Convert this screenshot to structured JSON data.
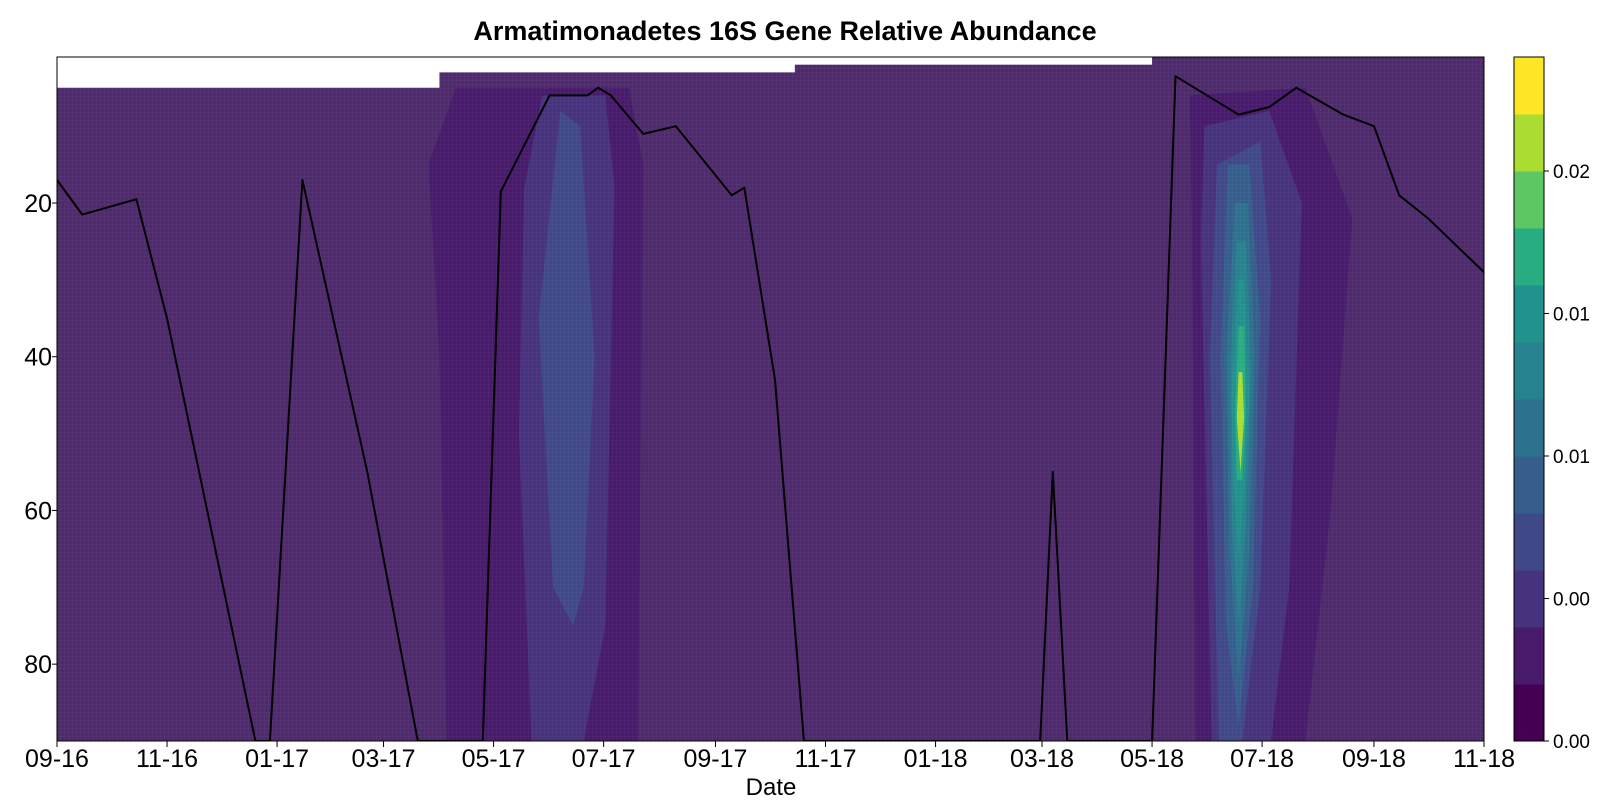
{
  "chart_data": {
    "type": "heatmap",
    "subtype": "filled-contour with line overlay",
    "title": "Armatimonadetes 16S Gene Relative Abundance",
    "xlabel": "Date",
    "ylabel": "",
    "x_axis": "date",
    "xlim": [
      "2016-09-01",
      "2018-11-01"
    ],
    "x_tick_labels": [
      "09-16",
      "11-16",
      "01-17",
      "03-17",
      "05-17",
      "07-17",
      "09-17",
      "11-17",
      "01-18",
      "03-18",
      "05-18",
      "07-18",
      "09-18",
      "11-18"
    ],
    "y_axis_inverted": true,
    "ylim": [
      1,
      90
    ],
    "y_ticks": [
      20,
      40,
      60,
      80
    ],
    "colormap": "viridis",
    "colorbar": {
      "min": 0.0,
      "max": 0.024,
      "levels": 12,
      "tick_labels": [
        "0.00",
        "0.00",
        "0.01",
        "0.01",
        "0.02"
      ],
      "tick_values": [
        0.0,
        0.005,
        0.01,
        0.015,
        0.02
      ],
      "colors": [
        "#440154",
        "#471A6B",
        "#46327E",
        "#3F4889",
        "#355E8D",
        "#2C718E",
        "#26828E",
        "#21918C",
        "#27AD81",
        "#5DC863",
        "#AADC32",
        "#FDE725"
      ]
    },
    "background_level_color": "#4E2A6C",
    "sampling_top_depth": [
      {
        "from": "2016-09-01",
        "to": "2017-04-01",
        "depth": 5
      },
      {
        "from": "2017-04-01",
        "to": "2017-10-15",
        "depth": 3
      },
      {
        "from": "2017-10-15",
        "to": "2018-05-01",
        "depth": 2
      },
      {
        "from": "2018-05-01",
        "to": "2018-11-01",
        "depth": 1
      }
    ],
    "contour_regions": [
      {
        "name": "summer-2017-outer",
        "level": 0.0033,
        "polygon": [
          [
            "2017-04-10",
            5
          ],
          [
            "2017-07-15",
            5
          ],
          [
            "2017-07-23",
            15
          ],
          [
            "2017-07-20",
            90
          ],
          [
            "2017-04-05",
            90
          ],
          [
            "2017-04-01",
            40
          ],
          [
            "2017-03-26",
            15
          ]
        ]
      },
      {
        "name": "summer-2017-mid",
        "level": 0.0045,
        "polygon": [
          [
            "2017-05-28",
            6
          ],
          [
            "2017-07-02",
            6
          ],
          [
            "2017-07-07",
            18
          ],
          [
            "2017-07-02",
            75
          ],
          [
            "2017-06-20",
            90
          ],
          [
            "2017-05-22",
            90
          ],
          [
            "2017-05-15",
            50
          ],
          [
            "2017-05-18",
            18
          ]
        ]
      },
      {
        "name": "summer-2017-core",
        "level": 0.006,
        "polygon": [
          [
            "2017-06-07",
            8
          ],
          [
            "2017-06-18",
            10
          ],
          [
            "2017-06-26",
            40
          ],
          [
            "2017-06-20",
            70
          ],
          [
            "2017-06-14",
            75
          ],
          [
            "2017-06-03",
            70
          ],
          [
            "2017-05-26",
            35
          ]
        ]
      },
      {
        "name": "summer-2018-outer",
        "level": 0.0033,
        "polygon": [
          [
            "2018-05-22",
            6
          ],
          [
            "2018-07-25",
            5
          ],
          [
            "2018-08-20",
            22
          ],
          [
            "2018-08-08",
            60
          ],
          [
            "2018-07-25",
            90
          ],
          [
            "2018-05-25",
            90
          ],
          [
            "2018-05-23",
            20
          ]
        ]
      },
      {
        "name": "summer-2018-l1",
        "level": 0.0045,
        "polygon": [
          [
            "2018-05-30",
            10
          ],
          [
            "2018-07-05",
            8
          ],
          [
            "2018-07-23",
            20
          ],
          [
            "2018-07-16",
            70
          ],
          [
            "2018-07-06",
            90
          ],
          [
            "2018-06-03",
            90
          ],
          [
            "2018-05-28",
            25
          ]
        ]
      },
      {
        "name": "summer-2018-l2",
        "level": 0.006,
        "polygon": [
          [
            "2018-06-06",
            15
          ],
          [
            "2018-06-30",
            12
          ],
          [
            "2018-07-06",
            30
          ],
          [
            "2018-06-30",
            70
          ],
          [
            "2018-06-20",
            90
          ],
          [
            "2018-06-07",
            90
          ],
          [
            "2018-06-02",
            40
          ]
        ]
      },
      {
        "name": "summer-2018-l3",
        "level": 0.008,
        "polygon": [
          [
            "2018-06-12",
            15
          ],
          [
            "2018-06-24",
            15
          ],
          [
            "2018-06-30",
            35
          ],
          [
            "2018-06-26",
            70
          ],
          [
            "2018-06-18",
            88
          ],
          [
            "2018-06-11",
            75
          ],
          [
            "2018-06-08",
            40
          ]
        ]
      },
      {
        "name": "summer-2018-l4",
        "level": 0.01,
        "polygon": [
          [
            "2018-06-16",
            20
          ],
          [
            "2018-06-23",
            20
          ],
          [
            "2018-06-27",
            40
          ],
          [
            "2018-06-24",
            65
          ],
          [
            "2018-06-18",
            82
          ],
          [
            "2018-06-13",
            65
          ],
          [
            "2018-06-11",
            40
          ]
        ]
      },
      {
        "name": "summer-2018-l5",
        "level": 0.012,
        "polygon": [
          [
            "2018-06-17",
            25
          ],
          [
            "2018-06-22",
            25
          ],
          [
            "2018-06-25",
            42
          ],
          [
            "2018-06-22",
            62
          ],
          [
            "2018-06-18",
            75
          ],
          [
            "2018-06-14",
            60
          ],
          [
            "2018-06-13",
            42
          ]
        ]
      },
      {
        "name": "summer-2018-l6",
        "level": 0.015,
        "polygon": [
          [
            "2018-06-18",
            30
          ],
          [
            "2018-06-21",
            30
          ],
          [
            "2018-06-24",
            45
          ],
          [
            "2018-06-21",
            58
          ],
          [
            "2018-06-18",
            66
          ],
          [
            "2018-06-15",
            56
          ],
          [
            "2018-06-14",
            45
          ]
        ]
      },
      {
        "name": "summer-2018-l7",
        "level": 0.018,
        "polygon": [
          [
            "2018-06-18",
            36
          ],
          [
            "2018-06-21",
            36
          ],
          [
            "2018-06-22",
            47
          ],
          [
            "2018-06-20",
            56
          ],
          [
            "2018-06-17",
            56
          ],
          [
            "2018-06-16",
            47
          ]
        ]
      },
      {
        "name": "summer-2018-l8",
        "level": 0.021,
        "polygon": [
          [
            "2018-06-18",
            42
          ],
          [
            "2018-06-20",
            42
          ],
          [
            "2018-06-21",
            48
          ],
          [
            "2018-06-19",
            55
          ],
          [
            "2018-06-17",
            48
          ]
        ]
      }
    ],
    "line_series": {
      "color": "#000000",
      "points": [
        [
          "2016-09-01",
          17
        ],
        [
          "2016-09-15",
          21.5
        ],
        [
          "2016-10-15",
          19.5
        ],
        [
          "2016-11-01",
          35
        ],
        [
          "2016-12-20",
          90
        ],
        [
          "2016-12-28",
          90
        ],
        [
          "2017-01-15",
          17
        ],
        [
          "2017-02-20",
          55
        ],
        [
          "2017-03-20",
          90
        ],
        [
          "2017-04-25",
          90
        ],
        [
          "2017-05-05",
          18.5
        ],
        [
          "2017-06-01",
          6
        ],
        [
          "2017-06-22",
          6
        ],
        [
          "2017-06-28",
          5
        ],
        [
          "2017-07-05",
          6
        ],
        [
          "2017-07-23",
          11
        ],
        [
          "2017-08-10",
          10
        ],
        [
          "2017-09-10",
          19
        ],
        [
          "2017-09-17",
          18
        ],
        [
          "2017-10-04",
          43
        ],
        [
          "2017-10-20",
          90
        ],
        [
          "2018-02-28",
          90
        ],
        [
          "2018-03-07",
          55
        ],
        [
          "2018-03-15",
          90
        ],
        [
          "2018-05-01",
          90
        ],
        [
          "2018-05-14",
          3.5
        ],
        [
          "2018-06-18",
          8.5
        ],
        [
          "2018-07-05",
          7.5
        ],
        [
          "2018-07-20",
          5
        ],
        [
          "2018-08-15",
          8.5
        ],
        [
          "2018-09-01",
          10
        ],
        [
          "2018-09-15",
          19
        ],
        [
          "2018-10-01",
          22
        ],
        [
          "2018-11-01",
          29
        ]
      ]
    }
  }
}
